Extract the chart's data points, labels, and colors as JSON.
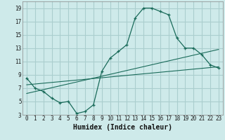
{
  "xlabel": "Humidex (Indice chaleur)",
  "background_color": "#ceeaea",
  "grid_color": "#aacece",
  "line_color": "#1a6b5a",
  "xlim": [
    -0.5,
    23.5
  ],
  "ylim": [
    3,
    20
  ],
  "xticks": [
    0,
    1,
    2,
    3,
    4,
    5,
    6,
    7,
    8,
    9,
    10,
    11,
    12,
    13,
    14,
    15,
    16,
    17,
    18,
    19,
    20,
    21,
    22,
    23
  ],
  "yticks": [
    3,
    5,
    7,
    9,
    11,
    13,
    15,
    17,
    19
  ],
  "line1_x": [
    0,
    1,
    2,
    3,
    4,
    5,
    6,
    7,
    8,
    9,
    10,
    11,
    12,
    13,
    14,
    15,
    16,
    17,
    18,
    19,
    20,
    21,
    22,
    23
  ],
  "line1_y": [
    8.5,
    7.0,
    6.5,
    5.5,
    4.8,
    5.0,
    3.2,
    3.5,
    4.5,
    9.5,
    11.5,
    12.5,
    13.5,
    17.5,
    19.0,
    19.0,
    18.5,
    18.0,
    14.5,
    13.0,
    13.0,
    12.0,
    10.5,
    10.0
  ],
  "line2_x": [
    0,
    23
  ],
  "line2_y": [
    7.5,
    10.2
  ],
  "line3_x": [
    0,
    23
  ],
  "line3_y": [
    6.2,
    12.8
  ],
  "tick_fontsize": 5.5,
  "xlabel_fontsize": 7
}
